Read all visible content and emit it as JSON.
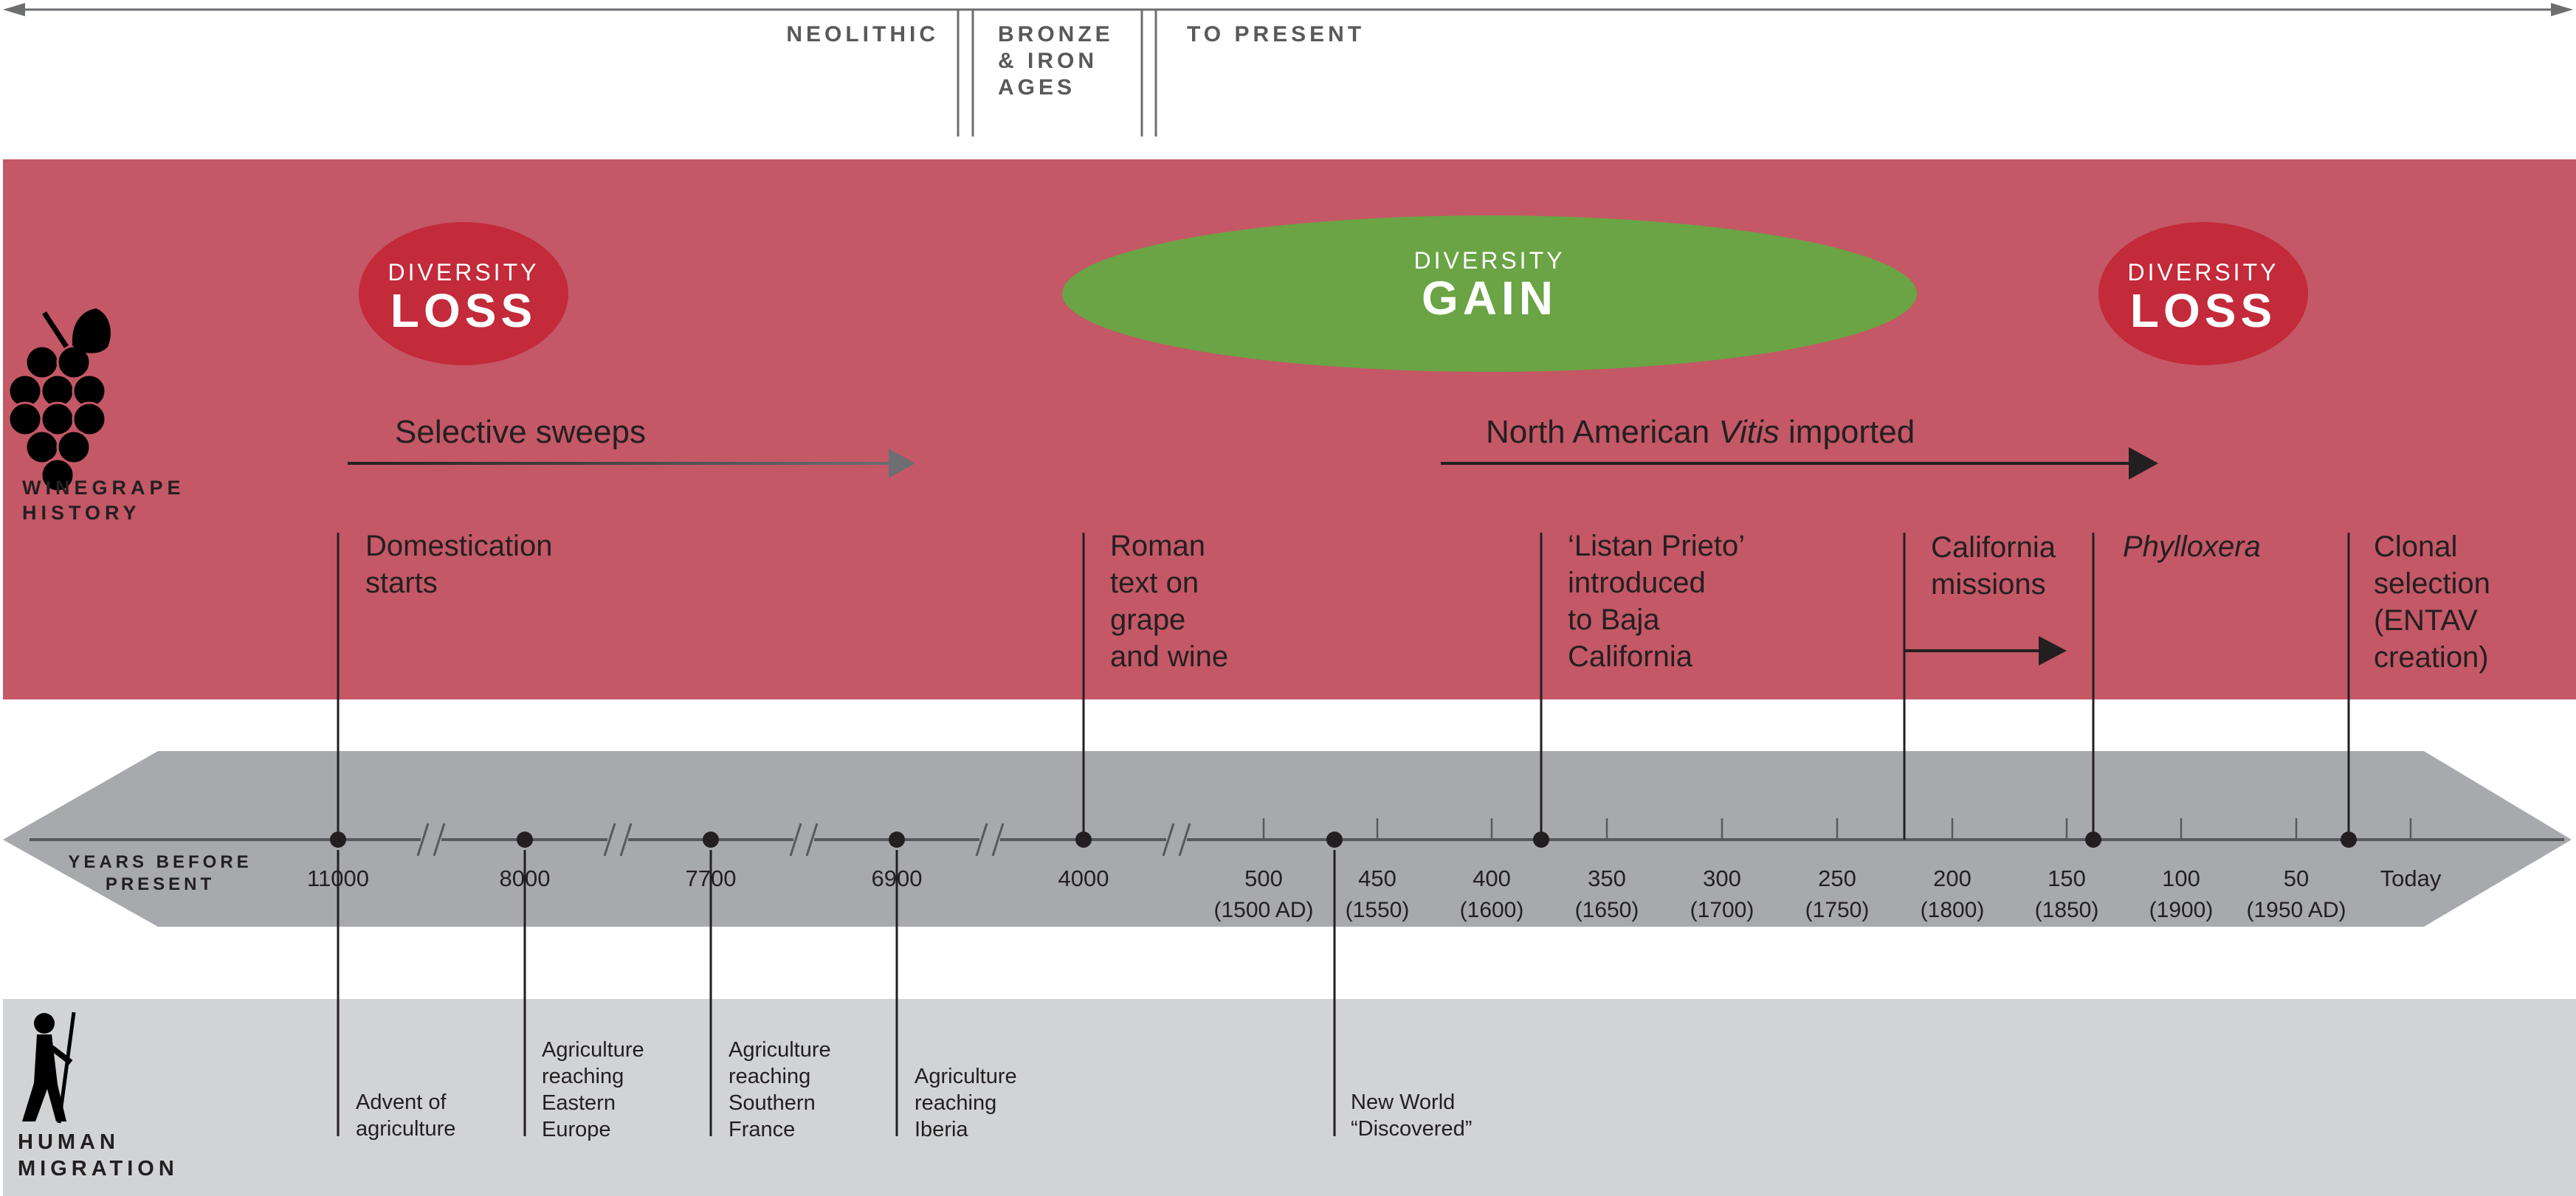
{
  "eras": [
    "NEOLITHIC",
    "BRONZE\n& IRON\nAGES",
    "TO PRESENT"
  ],
  "badges": {
    "loss_left": {
      "small": "DIVERSITY",
      "big": "LOSS"
    },
    "gain": {
      "small": "DIVERSITY",
      "big": "GAIN"
    },
    "loss_right": {
      "small": "DIVERSITY",
      "big": "LOSS"
    }
  },
  "sections": {
    "winegrape": "WINEGRAPE\nHISTORY",
    "human": "HUMAN\nMIGRATION",
    "years_before_present": "YEARS BEFORE\nPRESENT"
  },
  "arrows": {
    "selective_sweeps": "Selective sweeps",
    "north_american": {
      "pre": "North American ",
      "italic": "Vitis",
      "post": " imported"
    }
  },
  "grape_events": [
    {
      "id": "domestication",
      "label": "Domestication\nstarts",
      "italic": false
    },
    {
      "id": "roman",
      "label": "Roman\ntext on\ngrape\nand wine",
      "italic": false
    },
    {
      "id": "listan",
      "label": "‘Listan Prieto’\nintroduced\nto Baja\nCalifornia",
      "italic": false
    },
    {
      "id": "california",
      "label": "California\nmissions",
      "italic": false
    },
    {
      "id": "phylloxera",
      "label": "Phylloxera",
      "italic": true
    },
    {
      "id": "clonal",
      "label": "Clonal\nselection\n(ENTAV\ncreation)",
      "italic": false
    }
  ],
  "timeline_ticks": [
    {
      "label": "11000",
      "sub": ""
    },
    {
      "label": "8000",
      "sub": ""
    },
    {
      "label": "7700",
      "sub": ""
    },
    {
      "label": "6900",
      "sub": ""
    },
    {
      "label": "4000",
      "sub": ""
    },
    {
      "label": "500",
      "sub": "(1500 AD)"
    },
    {
      "label": "450",
      "sub": "(1550)"
    },
    {
      "label": "400",
      "sub": "(1600)"
    },
    {
      "label": "350",
      "sub": "(1650)"
    },
    {
      "label": "300",
      "sub": "(1700)"
    },
    {
      "label": "250",
      "sub": "(1750)"
    },
    {
      "label": "200",
      "sub": "(1800)"
    },
    {
      "label": "150",
      "sub": "(1850)"
    },
    {
      "label": "100",
      "sub": "(1900)"
    },
    {
      "label": "50",
      "sub": "(1950 AD)"
    },
    {
      "label": "Today",
      "sub": ""
    }
  ],
  "human_events": [
    {
      "id": "advent",
      "label": "Advent of\nagriculture"
    },
    {
      "id": "eastern",
      "label": "Agriculture\nreaching\nEastern\nEurope"
    },
    {
      "id": "southern",
      "label": "Agriculture\nreaching\nSouthern\nFrance"
    },
    {
      "id": "iberia",
      "label": "Agriculture\nreaching\nIberia"
    },
    {
      "id": "newworld",
      "label": "New World\n“Discovered”"
    }
  ],
  "colors": {
    "grape_band": "#c45866",
    "badge_red": "#c32a3a",
    "gain_green": "#6aa444",
    "timeline_gray": "#a8a9ad",
    "human_band": "#d2d3d5",
    "ink": "#231f20",
    "era_text": "#58595b"
  }
}
